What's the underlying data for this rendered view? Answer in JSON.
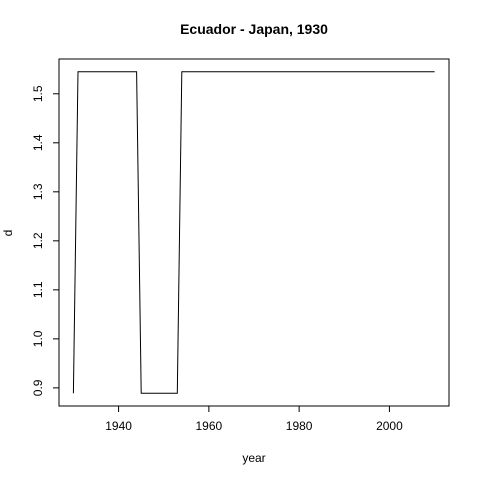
{
  "chart_data": {
    "type": "line",
    "title": "Ecuador - Japan, 1930",
    "xlabel": "year",
    "ylabel": "d",
    "xlim": [
      1926.8,
      2013.2
    ],
    "ylim": [
      0.863,
      1.571
    ],
    "xticks": [
      1940,
      1960,
      1980,
      2000
    ],
    "yticks": [
      0.9,
      1.0,
      1.1,
      1.2,
      1.3,
      1.4,
      1.5
    ],
    "grid": false,
    "line_color": "#000000",
    "x": [
      1930,
      1931,
      1944,
      1945,
      1953,
      1954,
      2010
    ],
    "y": [
      0.889,
      1.545,
      1.545,
      0.889,
      0.889,
      1.545,
      1.545
    ]
  }
}
